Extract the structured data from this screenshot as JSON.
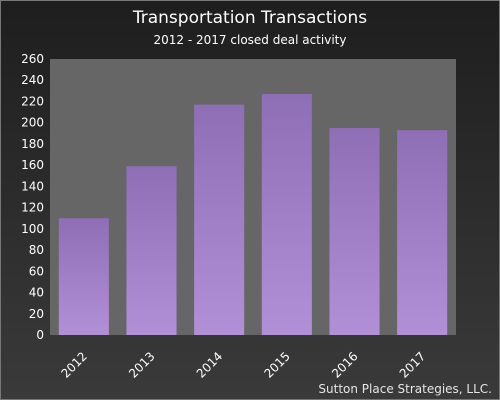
{
  "chart_data": {
    "type": "bar",
    "title": "Transportation Transactions",
    "subtitle": "2012 - 2017 closed deal activity",
    "xlabel": "",
    "ylabel": "",
    "categories": [
      "2012",
      "2013",
      "2014",
      "2015",
      "2016",
      "2017"
    ],
    "values": [
      110,
      159,
      217,
      227,
      195,
      193
    ],
    "ylim": [
      0,
      260
    ],
    "yticks": [
      0,
      20,
      40,
      60,
      80,
      100,
      120,
      140,
      160,
      180,
      200,
      220,
      240,
      260
    ],
    "grid": false,
    "legend": "none",
    "colors": {
      "bar_top": "#8e6eb4",
      "bar_bottom": "#b290d8",
      "plot_background": "#666666"
    }
  },
  "footer": {
    "source": "Sutton Place Strategies, LLC."
  }
}
